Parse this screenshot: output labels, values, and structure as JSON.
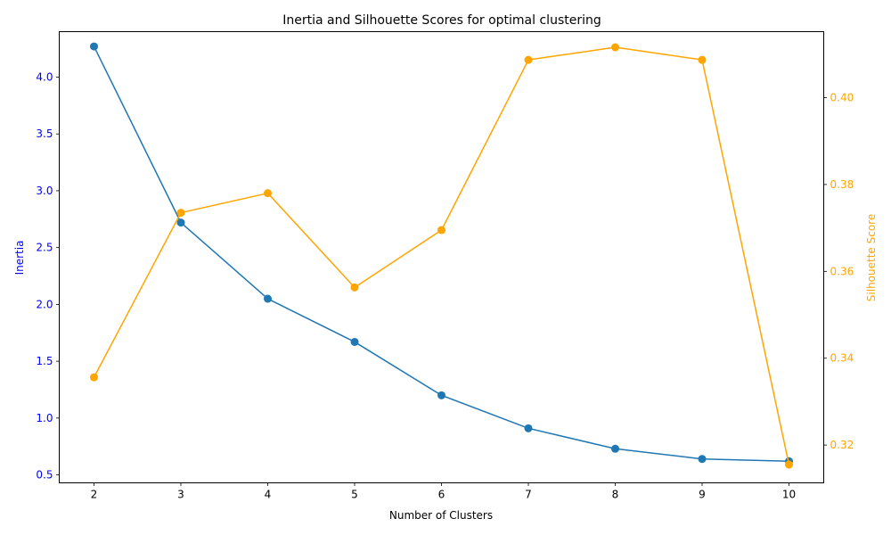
{
  "chart_data": {
    "type": "line",
    "title": "Inertia and Silhouette Scores for optimal clustering",
    "xlabel": "Number of Clusters",
    "x": [
      2,
      3,
      4,
      5,
      6,
      7,
      8,
      9,
      10
    ],
    "xlim": [
      1.6,
      10.4
    ],
    "xticks": [
      "2",
      "3",
      "4",
      "5",
      "6",
      "7",
      "8",
      "9",
      "10"
    ],
    "grid": false,
    "y_left": {
      "label": "Inertia",
      "color": "#0000ff",
      "lim": [
        0.43,
        4.4
      ],
      "ticks": [
        "0.5",
        "1.0",
        "1.5",
        "2.0",
        "2.5",
        "3.0",
        "3.5",
        "4.0"
      ]
    },
    "y_right": {
      "label": "Silhouette Score",
      "color": "#ffa500",
      "lim": [
        0.3113,
        0.4152
      ],
      "ticks": [
        "0.32",
        "0.34",
        "0.36",
        "0.38",
        "0.40"
      ]
    },
    "series": [
      {
        "axis": "left",
        "color": "#1f77b4",
        "marker": "circle",
        "values": [
          4.27,
          2.72,
          2.05,
          1.67,
          1.2,
          0.91,
          0.73,
          0.64,
          0.62
        ]
      },
      {
        "axis": "right",
        "color": "#ffa500",
        "marker": "circle",
        "values": [
          0.3356,
          0.3735,
          0.378,
          0.3563,
          0.3695,
          0.4087,
          0.4116,
          0.4087,
          0.3155
        ]
      }
    ]
  }
}
